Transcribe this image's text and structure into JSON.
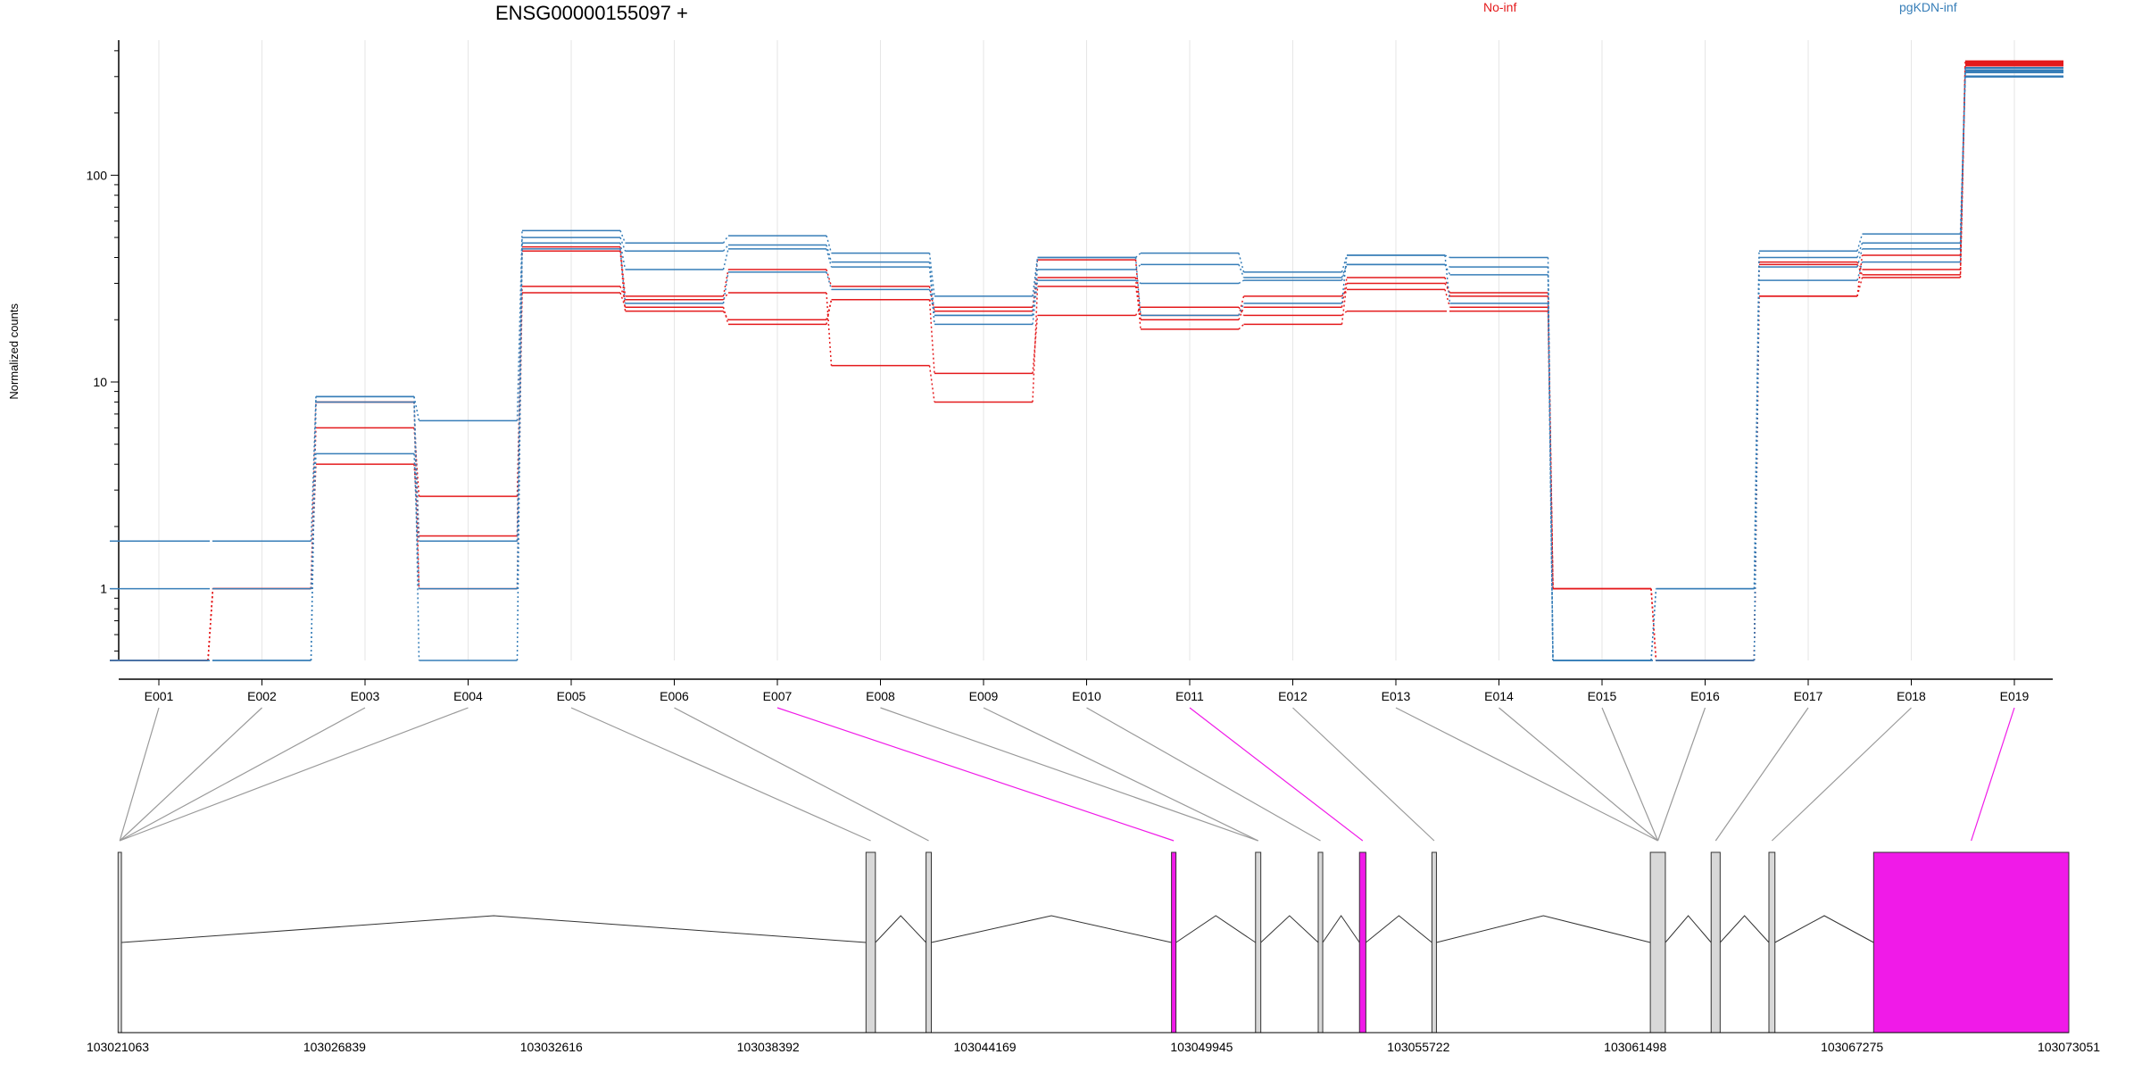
{
  "title": "ENSG00000155097 +",
  "legend": [
    {
      "label": "No-inf",
      "color": "#e41a1c"
    },
    {
      "label": "pgKDN-inf",
      "color": "#377eb8"
    }
  ],
  "colors": {
    "highlight": "#f01ae8",
    "grid": "#e6e6e6",
    "connector": "#9a9a9a"
  },
  "chart_data": {
    "type": "line",
    "ylabel": "Normalized counts",
    "yscale": "log",
    "ylim": [
      0.45,
      450
    ],
    "yticks": [
      1,
      10,
      100
    ],
    "ytick_labels": [
      "1",
      "10",
      "100"
    ],
    "categories": [
      "E001",
      "E002",
      "E003",
      "E004",
      "E005",
      "E006",
      "E007",
      "E008",
      "E009",
      "E010",
      "E011",
      "E012",
      "E013",
      "E014",
      "E015",
      "E016",
      "E017",
      "E018",
      "E019"
    ],
    "highlighted_exons": [
      "E007",
      "E011",
      "E019"
    ],
    "series": [
      {
        "group": "No-inf",
        "values": [
          0.45,
          1.0,
          8.0,
          1.0,
          27,
          23,
          19,
          25,
          11,
          21,
          23,
          21,
          22,
          22,
          1.0,
          0.45,
          26,
          32,
          350
        ]
      },
      {
        "group": "No-inf",
        "values": [
          0.45,
          1.0,
          6.0,
          2.8,
          29,
          25,
          27,
          12,
          8,
          29,
          21,
          26,
          28,
          23,
          1.0,
          0.45,
          37,
          33,
          340
        ]
      },
      {
        "group": "No-inf",
        "values": [
          0.45,
          1.0,
          4.0,
          1.8,
          43,
          22,
          20,
          25,
          23,
          32,
          18,
          19,
          30,
          27,
          1.0,
          0.45,
          38,
          35,
          345
        ]
      },
      {
        "group": "No-inf",
        "values": [
          0.45,
          1.0,
          8.0,
          1.7,
          45,
          26,
          35,
          29,
          22,
          39,
          20,
          23,
          32,
          26,
          1.0,
          0.45,
          26,
          41,
          355
        ]
      },
      {
        "group": "pgKDN-inf",
        "values": [
          1.7,
          1.7,
          8.5,
          6.5,
          54,
          47,
          51,
          42,
          26,
          40,
          42,
          34,
          41,
          40,
          0.45,
          1.0,
          43,
          52,
          300
        ]
      },
      {
        "group": "pgKDN-inf",
        "values": [
          1.0,
          1.0,
          4.5,
          1.0,
          50,
          43,
          46,
          38,
          21,
          35,
          37,
          32,
          37,
          36,
          0.45,
          1.0,
          40,
          47,
          315
        ]
      },
      {
        "group": "pgKDN-inf",
        "values": [
          0.45,
          0.45,
          8.5,
          0.45,
          47,
          35,
          44,
          36,
          19,
          31,
          30,
          31,
          37,
          33,
          0.45,
          0.45,
          36,
          44,
          320
        ]
      },
      {
        "group": "pgKDN-inf",
        "values": [
          0.45,
          0.45,
          8.0,
          1.7,
          44,
          24,
          34,
          28,
          21,
          40,
          21,
          24,
          41,
          24,
          0.45,
          0.45,
          31,
          38,
          330
        ]
      }
    ],
    "gene_model": {
      "coordinate_labels": [
        "103021063",
        "103026839",
        "103032616",
        "103038392",
        "103044169",
        "103049945",
        "103055722",
        "103061498",
        "103067275",
        "103073051"
      ],
      "range": [
        103021063,
        103073051
      ]
    }
  }
}
